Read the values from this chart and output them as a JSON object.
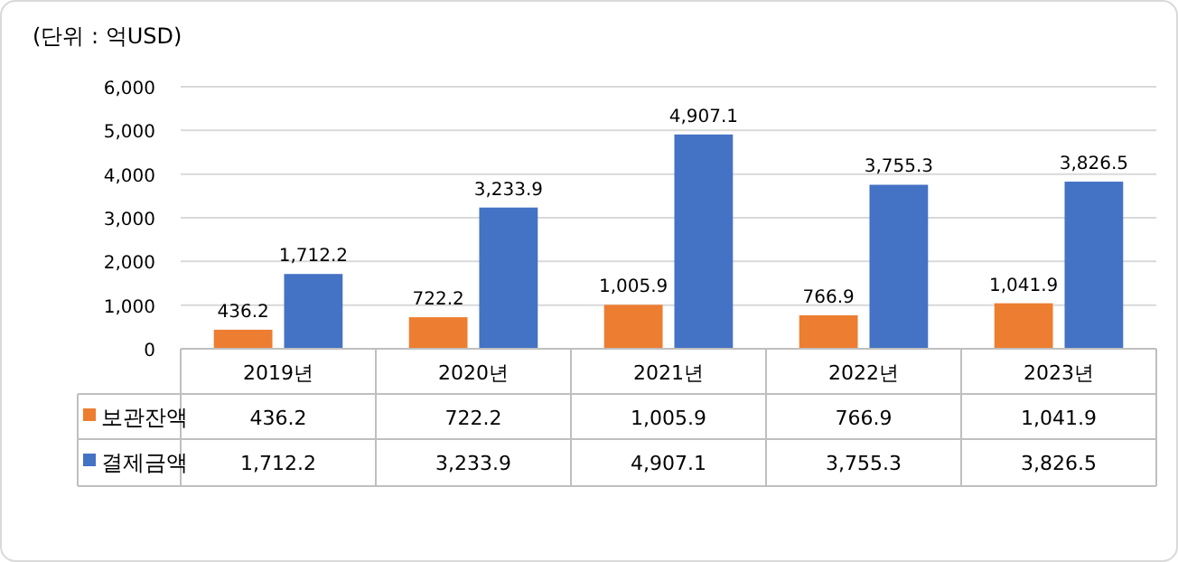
{
  "chart_data": {
    "type": "bar",
    "ylabel": "(단위 : 억USD)",
    "categories": [
      "2019년",
      "2020년",
      "2021년",
      "2022년",
      "2023년"
    ],
    "series": [
      {
        "name": "보관잔액",
        "color": "#ed7d31",
        "values": [
          436.2,
          722.2,
          1005.9,
          766.9,
          1041.9
        ],
        "value_labels": [
          "436.2",
          "722.2",
          "1,005.9",
          "766.9",
          "1,041.9"
        ]
      },
      {
        "name": "결제금액",
        "color": "#4472c4",
        "values": [
          1712.2,
          3233.9,
          4907.1,
          3755.3,
          3826.5
        ],
        "value_labels": [
          "1,712.2",
          "3,233.9",
          "4,907.1",
          "3,755.3",
          "3,826.5"
        ]
      }
    ],
    "ylim": [
      0,
      6000
    ],
    "yticks": [
      0,
      {
        "value": 1000,
        "label": "1,000"
      },
      {
        "value": 2000,
        "label": "2,000"
      },
      {
        "value": 3000,
        "label": "3,000"
      },
      {
        "value": 4000,
        "label": "4,000"
      },
      {
        "value": 5000,
        "label": "5,000"
      },
      {
        "value": 6000,
        "label": "6,000"
      }
    ],
    "grid": "y",
    "legend": "bottom left"
  }
}
